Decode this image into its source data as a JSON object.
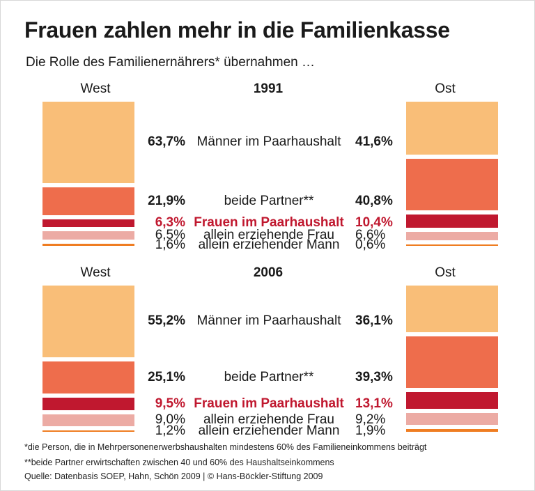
{
  "title": "Frauen zahlen mehr in die Familienkasse",
  "subtitle": "Die Rolle des Familienernährers* übernahmen …",
  "footnotes": [
    "*die Person, die in Mehrpersonenerwerbshaushalten mindestens 60% des Familieneinkommens beiträgt",
    "**beide Partner erwirtschaften zwischen 40 und 60% des Haushaltseinkommens",
    "Quelle: Datenbasis SOEP,  Hahn, Schön 2009 | © Hans-Böckler-Stiftung 2009"
  ],
  "colors": {
    "maenner": "#f9be78",
    "beide": "#ee6d4c",
    "frauen": "#c0182f",
    "allein_frau": "#ecaba4",
    "allein_mann": "#ef7d22"
  },
  "chart_data": {
    "type": "bar",
    "orientation": "stacked-proportional",
    "regions": [
      "West",
      "Ost"
    ],
    "categories": [
      "Männer im Paarhaushalt",
      "beide Partner**",
      "Frauen im Paarhaushalt",
      "allein erziehende Frau",
      "allein erziehender Mann"
    ],
    "unit": "%",
    "panels": [
      {
        "year": "1991",
        "west": [
          63.7,
          21.9,
          6.3,
          6.5,
          1.6
        ],
        "ost": [
          41.6,
          40.8,
          10.4,
          6.6,
          0.6
        ],
        "west_labels": [
          "63,7%",
          "21,9%",
          "6,3%",
          "6,5%",
          "1,6%"
        ],
        "ost_labels": [
          "41,6%",
          "40,8%",
          "10,4%",
          "6,6%",
          "0,6%"
        ]
      },
      {
        "year": "2006",
        "west": [
          55.2,
          25.1,
          9.5,
          9.0,
          1.2
        ],
        "ost": [
          36.1,
          39.3,
          13.1,
          9.2,
          1.9
        ],
        "west_labels": [
          "55,2%",
          "25,1%",
          "9,5%",
          "9,0%",
          "1,2%"
        ],
        "ost_labels": [
          "36,1%",
          "39,3%",
          "13,1%",
          "9,2%",
          "1,9%"
        ]
      }
    ]
  }
}
